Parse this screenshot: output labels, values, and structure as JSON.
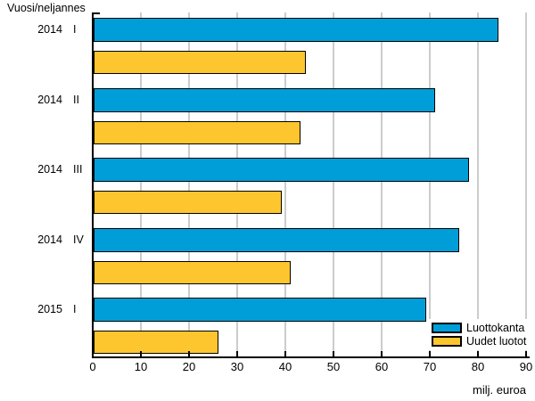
{
  "chart_data": {
    "type": "bar",
    "orientation": "horizontal",
    "axis_title": "Vuosi/neljannes",
    "xlabel": "milj. euroa",
    "categories": [
      {
        "year": "2014",
        "quarter": "I"
      },
      {
        "year": "2014",
        "quarter": "II"
      },
      {
        "year": "2014",
        "quarter": "III"
      },
      {
        "year": "2014",
        "quarter": "IV"
      },
      {
        "year": "2015",
        "quarter": "I"
      }
    ],
    "series": [
      {
        "name": "Luottokanta",
        "color": "#009ed8",
        "values": [
          84,
          71,
          78,
          76,
          69
        ]
      },
      {
        "name": "Uudet luotot",
        "color": "#fec62e",
        "values": [
          44,
          43,
          39,
          41,
          26
        ]
      }
    ],
    "x_ticks": [
      0,
      10,
      20,
      30,
      40,
      50,
      60,
      70,
      80,
      90
    ],
    "xlim": [
      0,
      90
    ],
    "grid": true,
    "gridline_color": "#cccccc",
    "legend_position": "bottom-right"
  }
}
